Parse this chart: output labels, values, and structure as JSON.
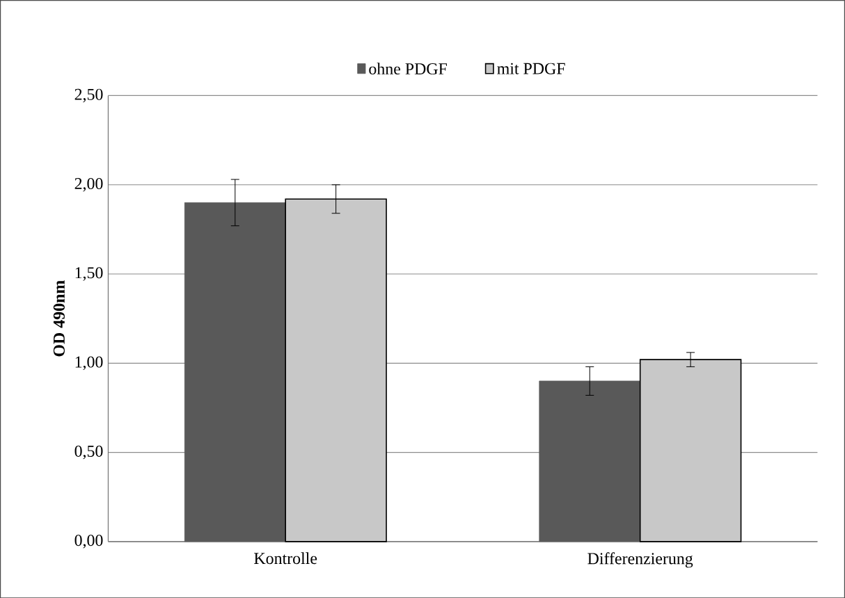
{
  "chart_data": {
    "type": "bar",
    "ylabel": "OD 490nm",
    "categories": [
      "Kontrolle",
      "Differenzierung"
    ],
    "series": [
      {
        "name": "ohne PDGF",
        "color": "#595959",
        "values": [
          1.9,
          0.9
        ],
        "errors": [
          0.13,
          0.08
        ]
      },
      {
        "name": "mit PDGF",
        "color": "#c8c8c8",
        "values": [
          1.92,
          1.02
        ],
        "errors": [
          0.08,
          0.04
        ]
      }
    ],
    "ylim": [
      0,
      2.5
    ],
    "yticks": [
      {
        "value": 0,
        "label": "0,00"
      },
      {
        "value": 0.5,
        "label": "0,50"
      },
      {
        "value": 1,
        "label": "1,00"
      },
      {
        "value": 1.5,
        "label": "1,50"
      },
      {
        "value": 2,
        "label": "2,00"
      },
      {
        "value": 2.5,
        "label": "2,50"
      }
    ],
    "grid": "y",
    "legend": "top"
  }
}
